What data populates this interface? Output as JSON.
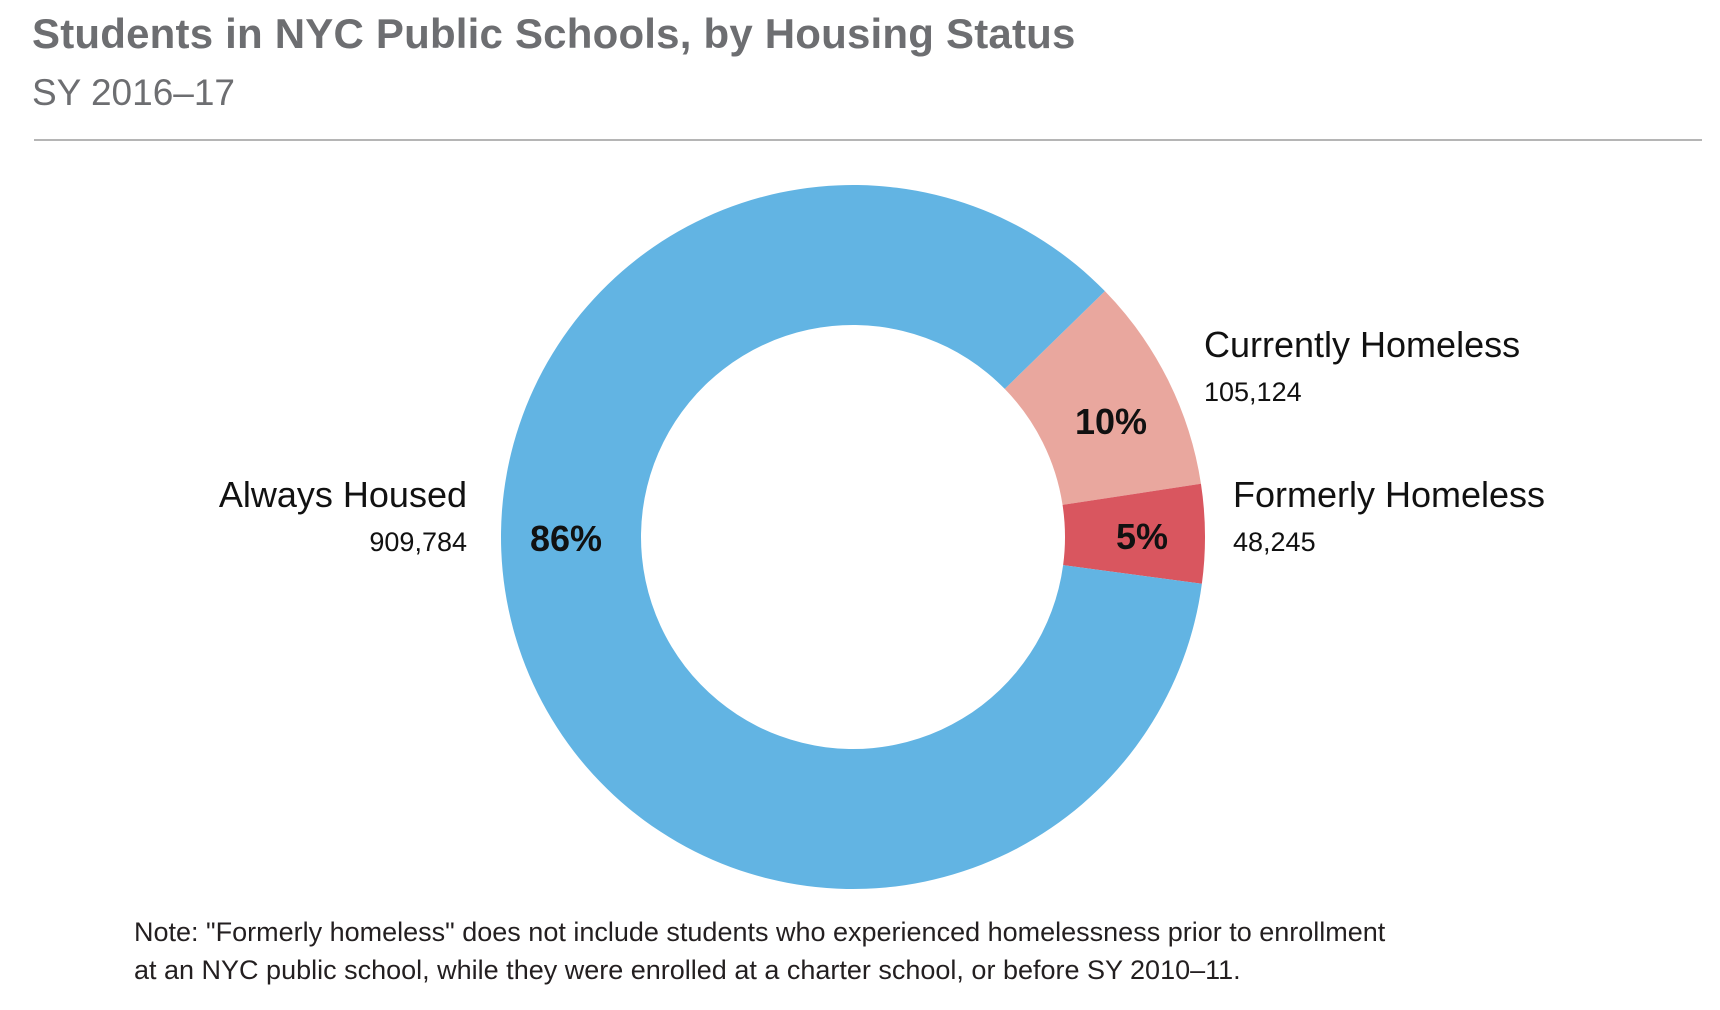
{
  "title": "Students in NYC Public Schools, by Housing Status",
  "subtitle": "SY 2016–17",
  "note": {
    "line1": "Note: \"Formerly homeless\" does not include students who experienced homelessness prior to enrollment",
    "line2": "at an NYC public school, while they were enrolled at a charter school, or before SY 2010–11."
  },
  "chart_data": {
    "type": "pie",
    "variant": "donut",
    "title": "Students in NYC Public Schools, by Housing Status",
    "subtitle": "SY 2016–17",
    "categories": [
      "Always Housed",
      "Currently Homeless",
      "Formerly Homeless"
    ],
    "values": [
      909784,
      105124,
      48245
    ],
    "value_labels": [
      "909,784",
      "105,124",
      "48,245"
    ],
    "percent_labels": [
      "86%",
      "10%",
      "5%"
    ],
    "colors": [
      "#62b4e3",
      "#e9a79e",
      "#d9565f"
    ],
    "legend": "none"
  }
}
